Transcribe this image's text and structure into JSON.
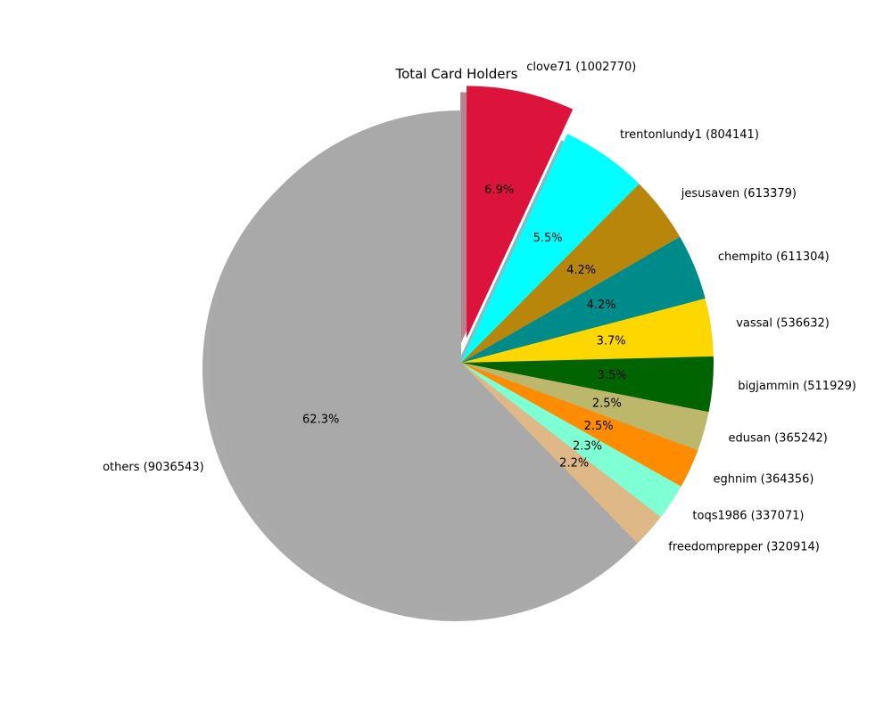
{
  "chart_data": {
    "type": "pie",
    "title": "Total Card Holders",
    "start_angle_deg": 90,
    "direction": "clockwise",
    "shadow": true,
    "explode": {
      "index": 0,
      "amount": 0.1
    },
    "slices": [
      {
        "name": "clove71",
        "value": 1002770,
        "label": "clove71 (1002770)",
        "pct_label": "6.9%",
        "color": "#DC143C"
      },
      {
        "name": "trentonlundy1",
        "value": 804141,
        "label": "trentonlundy1 (804141)",
        "pct_label": "5.5%",
        "color": "#00FFFF"
      },
      {
        "name": "jesusaven",
        "value": 613379,
        "label": "jesusaven (613379)",
        "pct_label": "4.2%",
        "color": "#B8860B"
      },
      {
        "name": "chempito",
        "value": 611304,
        "label": "chempito (611304)",
        "pct_label": "4.2%",
        "color": "#008B8B"
      },
      {
        "name": "vassal",
        "value": 536632,
        "label": "vassal (536632)",
        "pct_label": "3.7%",
        "color": "#FFD700"
      },
      {
        "name": "bigjammin",
        "value": 511929,
        "label": "bigjammin (511929)",
        "pct_label": "3.5%",
        "color": "#006400"
      },
      {
        "name": "edusan",
        "value": 365242,
        "label": "edusan (365242)",
        "pct_label": "2.5%",
        "color": "#BDB76B"
      },
      {
        "name": "eghnim",
        "value": 364356,
        "label": "eghnim (364356)",
        "pct_label": "2.5%",
        "color": "#FF8C00"
      },
      {
        "name": "toqs1986",
        "value": 337071,
        "label": "toqs1986 (337071)",
        "pct_label": "2.3%",
        "color": "#7FFFD4"
      },
      {
        "name": "freedomprepper",
        "value": 320914,
        "label": "freedomprepper (320914)",
        "pct_label": "2.2%",
        "color": "#DEB887"
      },
      {
        "name": "others",
        "value": 9036543,
        "label": "others (9036543)",
        "pct_label": "62.3%",
        "color": "#A9A9A9"
      }
    ]
  }
}
